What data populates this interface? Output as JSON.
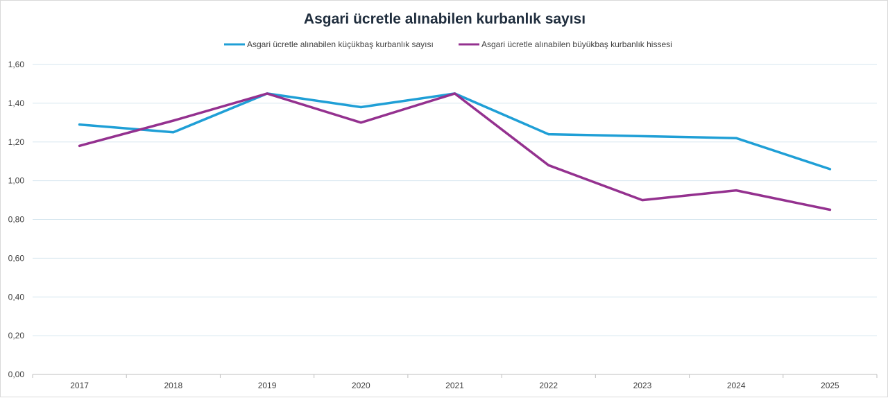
{
  "chart_data": {
    "type": "line",
    "title": "Asgari ücretle alınabilen kurbanlık sayısı",
    "categories": [
      "2017",
      "2018",
      "2019",
      "2020",
      "2021",
      "2022",
      "2023",
      "2024",
      "2025"
    ],
    "series": [
      {
        "name": "Asgari ücretle alınabilen küçükbaş kurbanlık sayısı",
        "color": "#1f9fd6",
        "values": [
          1.29,
          1.25,
          1.45,
          1.38,
          1.45,
          1.24,
          1.23,
          1.22,
          1.06
        ]
      },
      {
        "name": "Asgari ücretle alınabilen büyükbaş kurbanlık hissesi",
        "color": "#94318f",
        "values": [
          1.18,
          1.31,
          1.45,
          1.3,
          1.45,
          1.08,
          0.9,
          0.95,
          0.85
        ]
      }
    ],
    "ylim": [
      0,
      1.6
    ],
    "yticks": [
      "0,00",
      "0,20",
      "0,40",
      "0,60",
      "0,80",
      "1,00",
      "1,20",
      "1,40",
      "1,60"
    ],
    "grid": true,
    "legend_position": "top-center"
  }
}
